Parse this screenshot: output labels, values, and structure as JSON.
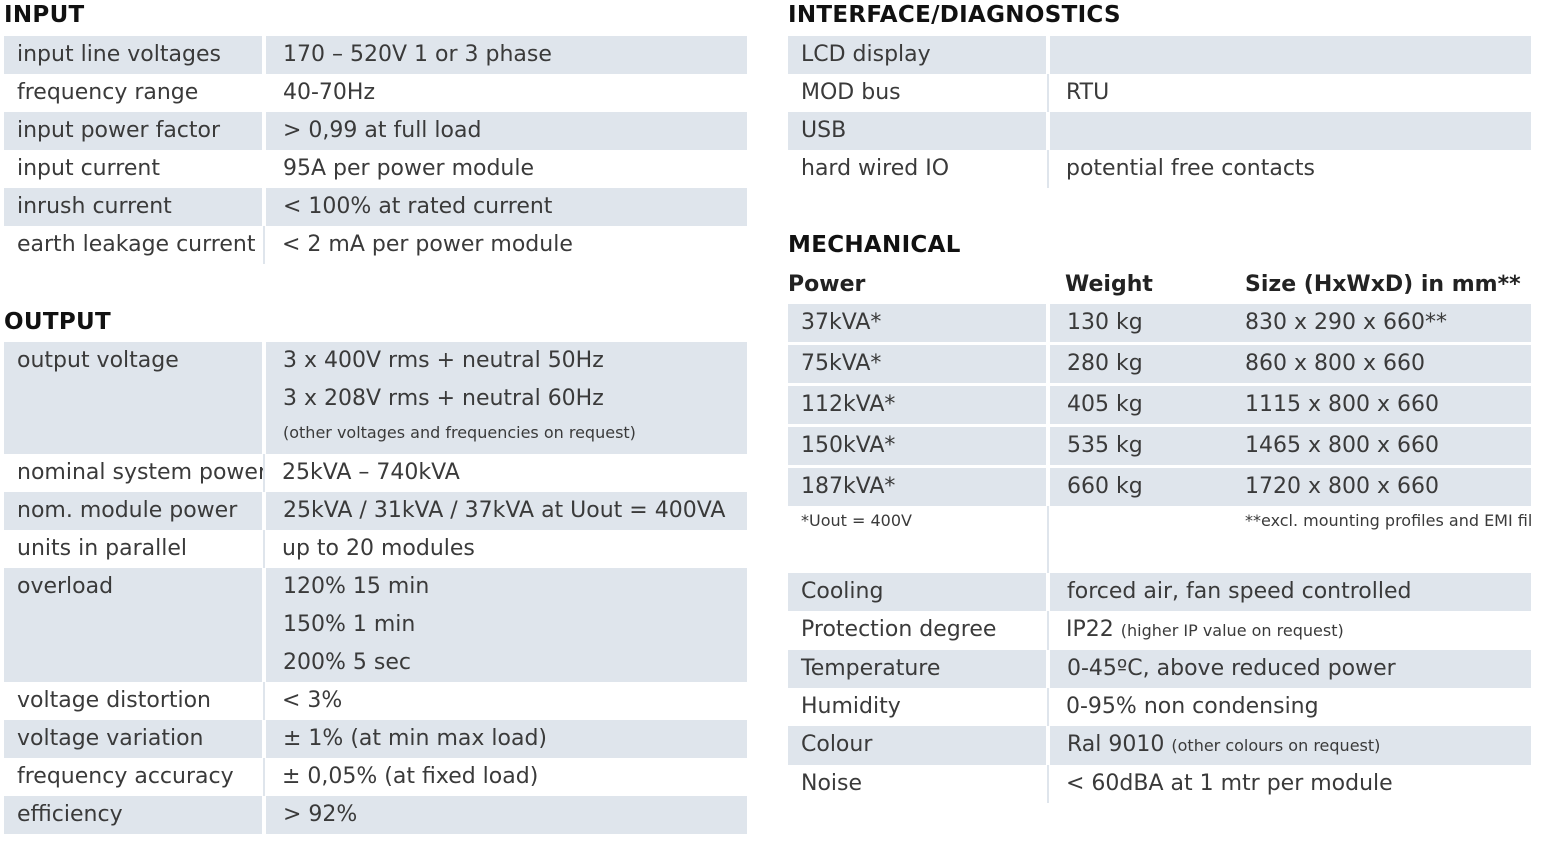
{
  "input": {
    "title": "INPUT",
    "rows": [
      {
        "label": "input line voltages",
        "value": "170 – 520V 1 or 3 phase"
      },
      {
        "label": "frequency range",
        "value": "40-70Hz"
      },
      {
        "label": "input power factor",
        "value": "> 0,99 at full load"
      },
      {
        "label": "input current",
        "value": "95A per power module"
      },
      {
        "label": "inrush current",
        "value": "< 100% at rated current"
      },
      {
        "label": "earth leakage current",
        "value": "< 2 mA per power module"
      }
    ]
  },
  "output": {
    "title": "OUTPUT",
    "voltage": {
      "label": "output voltage",
      "line1": "3 x 400V rms + neutral 50Hz",
      "line2": "3 x 208V rms + neutral 60Hz",
      "note": "(other voltages and frequencies on request)"
    },
    "system_power": {
      "label": "nominal system power",
      "value": "25kVA – 740kVA"
    },
    "module_power": {
      "label": "nom. module power",
      "value": "25kVA / 31kVA / 37kVA at Uout = 400VA"
    },
    "parallel": {
      "label": "units in parallel",
      "value": "up to 20 modules"
    },
    "overload": {
      "label": "overload",
      "line1": "120% 15 min",
      "line2": "150% 1 min",
      "line3": "200% 5 sec"
    },
    "distortion": {
      "label": "voltage distortion",
      "value": "< 3%"
    },
    "variation": {
      "label": "voltage variation",
      "value": "± 1% (at min max load)"
    },
    "freq_accuracy": {
      "label": "frequency accuracy",
      "value": "± 0,05% (at fixed load)"
    },
    "efficiency": {
      "label": "efficiency",
      "value": "> 92%"
    }
  },
  "interface": {
    "title": "INTERFACE/DIAGNOSTICS",
    "rows": [
      {
        "label": "LCD display",
        "value": ""
      },
      {
        "label": "MOD bus",
        "value": "RTU"
      },
      {
        "label": "USB",
        "value": ""
      },
      {
        "label": "hard wired IO",
        "value": "potential free contacts"
      }
    ]
  },
  "mechanical": {
    "title": "MECHANICAL",
    "headers": {
      "power": "Power",
      "weight": "Weight",
      "size": "Size (HxWxD) in mm**"
    },
    "rows": [
      {
        "power": "37kVA*",
        "weight": "130 kg",
        "size": "830 x 290 x 660**"
      },
      {
        "power": "75kVA*",
        "weight": "280 kg",
        "size": "860 x 800 x 660"
      },
      {
        "power": "112kVA*",
        "weight": "405 kg",
        "size": "1115 x 800 x 660"
      },
      {
        "power": "150kVA*",
        "weight": "535 kg",
        "size": "1465 x 800 x 660"
      },
      {
        "power": "187kVA*",
        "weight": "660 kg",
        "size": "1720 x 800 x 660"
      }
    ],
    "footnote_left": "*Uout = 400V",
    "footnote_right": "**excl. mounting profiles and EMI filter"
  },
  "environment": {
    "cooling": {
      "label": "Cooling",
      "value": "forced air, fan speed controlled"
    },
    "protection": {
      "label": "Protection degree",
      "value": "IP22",
      "note": "(higher IP value on request)"
    },
    "temperature": {
      "label": "Temperature",
      "value": "0-45ºC, above reduced power"
    },
    "humidity": {
      "label": "Humidity",
      "value": "0-95% non condensing"
    },
    "colour": {
      "label": "Colour",
      "value": "Ral 9010",
      "note": "(other colours on request)"
    },
    "noise": {
      "label": "Noise",
      "value": "< 60dBA at 1 mtr per module"
    }
  }
}
